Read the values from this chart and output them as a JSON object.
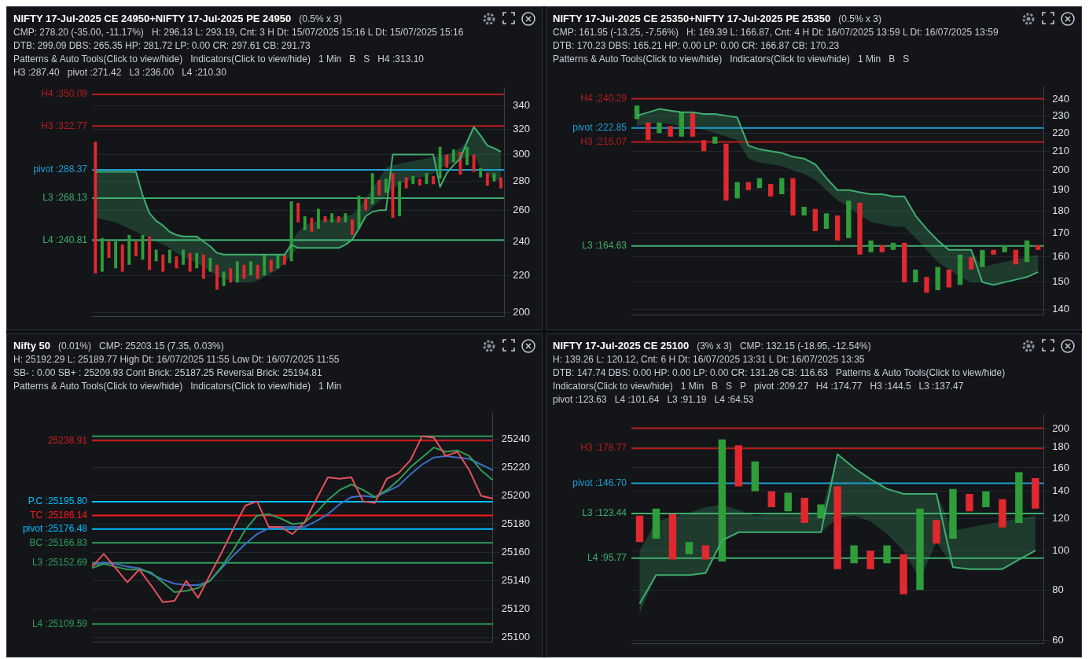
{
  "chart_data": [
    {
      "type": "bar",
      "title": "NIFTY 17-Jul-2025 CE 24950+NIFTY 17-Jul-2025 PE 24950",
      "annotations": [
        "(0.5% x 3)",
        "CMP: 278.20 (-35.00, -11.17%)",
        "H: 296.13 L: 293.19, Cnt: 3 H Dt: 15/07/2025 15:16 L Dt: 15/07/2025 15:16",
        "DTB: 299.09 DBS: 265.35 HP: 281.72 LP: 0.00 CR: 297.61 CB: 291.73",
        "Patterns & Auto Tools(Click to view/hide)",
        "Indicators(Click to view/hide)",
        "1 Min",
        "B",
        "S",
        "H4 :313.10",
        "H3 :287.40",
        "pivot :271.42",
        "L3 :236.00",
        "L4 :210.30"
      ],
      "categories": [
        null,
        null,
        null,
        null,
        null,
        null,
        null,
        null,
        null,
        null,
        null,
        null,
        null,
        null,
        null,
        null,
        null,
        null,
        null,
        null,
        null,
        null,
        null,
        null,
        null,
        null,
        null,
        null,
        null,
        null,
        null,
        null,
        null,
        null,
        null,
        null,
        null,
        null,
        null,
        null,
        null,
        null,
        null,
        null,
        null,
        null,
        null,
        null,
        null,
        null,
        null,
        null,
        null,
        null,
        null,
        null,
        null,
        null,
        null,
        null,
        null
      ],
      "series": [
        {
          "type": "bar",
          "values": [
            89,
            20,
            10,
            16,
            16,
            18,
            9,
            15,
            20,
            7,
            10,
            8,
            7,
            9,
            11,
            9,
            14,
            8,
            14,
            8,
            8,
            12,
            8,
            8,
            8,
            12,
            7,
            8,
            6,
            38,
            13,
            9,
            9,
            13,
            4,
            6,
            4,
            6,
            10,
            22,
            8,
            22,
            11,
            10,
            31,
            24,
            8,
            6,
            5,
            8,
            6,
            24,
            10,
            10,
            17,
            14,
            13,
            7,
            9,
            6,
            8
          ],
          "base": [
            221,
            222,
            230,
            224,
            222,
            226,
            231,
            229,
            223,
            228,
            222,
            227,
            224,
            226,
            222,
            224,
            218,
            222,
            212,
            214,
            216,
            216,
            218,
            220,
            218,
            220,
            222,
            224,
            226,
            228,
            252,
            247,
            246,
            248,
            252,
            252,
            252,
            252,
            244,
            248,
            260,
            264,
            270,
            272,
            255,
            256,
            275,
            278,
            277,
            278,
            278,
            282,
            290,
            294,
            285,
            292,
            287,
            283,
            277,
            280,
            275
          ],
          "colors": [
            "#e0282e",
            "#2e9d3a",
            "#e0282e",
            "#2e9d3a",
            "#e0282e",
            "#2e9d3a",
            "#e0282e",
            "#2e9d3a",
            "#e0282e",
            "#2e9d3a",
            "#e0282e",
            "#2e9d3a",
            "#e0282e",
            "#2e9d3a",
            "#e0282e",
            "#2e9d3a",
            "#e0282e",
            "#2e9d3a",
            "#e0282e",
            "#2e9d3a",
            "#e0282e",
            "#2e9d3a",
            "#e0282e",
            "#2e9d3a",
            "#e0282e",
            "#2e9d3a",
            "#e0282e",
            "#2e9d3a",
            "#e0282e",
            "#2e9d3a",
            "#e0282e",
            "#2e9d3a",
            "#e0282e",
            "#2e9d3a",
            "#e0282e",
            "#2e9d3a",
            "#e0282e",
            "#2e9d3a",
            "#e0282e",
            "#2e9d3a",
            "#e0282e",
            "#2e9d3a",
            "#e0282e",
            "#2e9d3a",
            "#e0282e",
            "#2e9d3a",
            "#e0282e",
            "#2e9d3a",
            "#e0282e",
            "#2e9d3a",
            "#e0282e",
            "#2e9d3a",
            "#e0282e",
            "#2e9d3a",
            "#e0282e",
            "#2e9d3a",
            "#e0282e",
            "#2e9d3a",
            "#e0282e",
            "#2e9d3a",
            "#e0282e"
          ]
        },
        {
          "type": "line",
          "color": "#3fae6e",
          "values": [
            287,
            287,
            287,
            287,
            287,
            287,
            287,
            270,
            258,
            253,
            250,
            246,
            244,
            243,
            243,
            243,
            240,
            237,
            233,
            232,
            232,
            232,
            232,
            232,
            232,
            232,
            232,
            232,
            232,
            238,
            236,
            236,
            236,
            236,
            236,
            236,
            236,
            238,
            241,
            248,
            256,
            259,
            260,
            260,
            300,
            300,
            300,
            300,
            300,
            300,
            300,
            276,
            286,
            292,
            297,
            310,
            322,
            315,
            307,
            305,
            302
          ],
          "lower": [
            255,
            254,
            253,
            252,
            250,
            248,
            246,
            244,
            242,
            240,
            238,
            236,
            233,
            231,
            229,
            227,
            225,
            222,
            220,
            218,
            217,
            216,
            216,
            216,
            217,
            219,
            221,
            223,
            227,
            232,
            236,
            236,
            236,
            236,
            236,
            236,
            236,
            238,
            241,
            248,
            256,
            262,
            266,
            270,
            275,
            278,
            280,
            282,
            283,
            284,
            286,
            290,
            292,
            294,
            296,
            298,
            300,
            290,
            285,
            282,
            280
          ],
          "upper": [
            287,
            287,
            287,
            287,
            287,
            287,
            287,
            270,
            258,
            253,
            250,
            246,
            244,
            243,
            243,
            243,
            240,
            237,
            233,
            232,
            232,
            232,
            232,
            232,
            232,
            232,
            232,
            232,
            232,
            240,
            246,
            250,
            252,
            253,
            254,
            254,
            255,
            256,
            257,
            262,
            268,
            275,
            282,
            290,
            292,
            293,
            294,
            295,
            296,
            297,
            298,
            299,
            300,
            302,
            305,
            310,
            322,
            315,
            307,
            305,
            302
          ]
        }
      ],
      "ylim": [
        198,
        356
      ],
      "yticks": [
        200,
        220,
        240,
        260,
        280,
        300,
        320,
        340
      ],
      "log": "y",
      "grid": "y",
      "tick_labels": "y",
      "ref_lines": [
        {
          "axis": "y",
          "value": 350.09,
          "label": "H4 :350.09",
          "color": "#b71c1c"
        },
        {
          "axis": "y",
          "value": 322.77,
          "label": "H3 :322.77",
          "color": "#b71c1c"
        },
        {
          "axis": "y",
          "value": 288.37,
          "label": "pivot :288.37",
          "color": "#1e9fd0"
        },
        {
          "axis": "y",
          "value": 268.13,
          "label": "L3 :268.13",
          "color": "#3fae6e"
        },
        {
          "axis": "y",
          "value": 240.81,
          "label": "L4 :240.81",
          "color": "#3fae6e"
        }
      ]
    },
    {
      "type": "bar",
      "title": "NIFTY 17-Jul-2025 CE 25350+NIFTY 17-Jul-2025 PE 25350",
      "annotations": [
        "(0.5% x 3)",
        "CMP: 161.95 (-13.25, -7.56%)",
        "H: 169.39 L: 166.87, Cnt: 4 H Dt: 16/07/2025 13:59 L Dt: 16/07/2025 13:59",
        "DTB: 170.23 DBS: 165.21 HP: 0.00 LP: 0.00 CR: 166.87 CB: 170.23",
        "Patterns & Auto Tools(Click to view/hide)",
        "Indicators(Click to view/hide)",
        "1 Min",
        "B",
        "S"
      ],
      "categories": [
        null,
        null,
        null,
        null,
        null,
        null,
        null,
        null,
        null,
        null,
        null,
        null,
        null,
        null,
        null,
        null,
        null,
        null,
        null,
        null,
        null,
        null,
        null,
        null,
        null,
        null,
        null,
        null,
        null,
        null,
        null,
        null,
        null,
        null,
        null,
        null,
        null
      ],
      "series": [
        {
          "type": "bar",
          "values": [
            8,
            10,
            6,
            6,
            14,
            14,
            6,
            4,
            29,
            8,
            4,
            5,
            6,
            8,
            18,
            4,
            10,
            7,
            11,
            17,
            23,
            5,
            3,
            3,
            16,
            5,
            6,
            9,
            7,
            12,
            5,
            7,
            2,
            3,
            6,
            9,
            2
          ],
          "base": [
            228,
            216,
            220,
            218,
            218,
            218,
            210,
            214,
            185,
            186,
            190,
            191,
            187,
            188,
            178,
            178,
            171,
            172,
            167,
            168,
            161,
            162,
            162,
            163,
            150,
            150,
            146,
            147,
            148,
            149,
            155,
            156,
            161,
            162,
            157,
            158,
            163
          ],
          "colors": [
            "#2e9d3a",
            "#e0282e",
            "#2e9d3a",
            "#e0282e",
            "#2e9d3a",
            "#e0282e",
            "#e0282e",
            "#2e9d3a",
            "#e0282e",
            "#2e9d3a",
            "#e0282e",
            "#2e9d3a",
            "#e0282e",
            "#2e9d3a",
            "#e0282e",
            "#2e9d3a",
            "#e0282e",
            "#2e9d3a",
            "#e0282e",
            "#2e9d3a",
            "#e0282e",
            "#2e9d3a",
            "#e0282e",
            "#2e9d3a",
            "#e0282e",
            "#2e9d3a",
            "#e0282e",
            "#2e9d3a",
            "#e0282e",
            "#2e9d3a",
            "#e0282e",
            "#2e9d3a",
            "#e0282e",
            "#2e9d3a",
            "#e0282e",
            "#2e9d3a",
            "#e0282e"
          ]
        },
        {
          "type": "line",
          "color": "#3fae6e",
          "values": [
            230,
            232,
            234,
            233,
            232,
            232,
            231,
            231,
            230,
            229,
            213,
            211,
            210,
            209,
            207,
            206,
            203,
            196,
            190,
            190,
            189,
            188,
            188,
            187,
            187,
            178,
            172,
            167,
            163,
            163,
            163,
            150,
            149,
            150,
            151,
            152,
            154
          ],
          "lower": [
            224,
            225,
            226,
            225,
            224,
            223,
            222,
            220,
            218,
            216,
            206,
            204,
            203,
            202,
            200,
            198,
            195,
            190,
            185,
            182,
            178,
            175,
            174,
            173,
            173,
            168,
            163,
            158,
            155,
            152,
            150,
            150,
            149,
            150,
            151,
            152,
            154
          ],
          "upper": [
            230,
            232,
            234,
            233,
            232,
            232,
            231,
            231,
            230,
            229,
            213,
            211,
            210,
            209,
            207,
            206,
            203,
            196,
            190,
            190,
            189,
            188,
            188,
            187,
            187,
            178,
            172,
            167,
            163,
            163,
            163,
            156,
            157,
            158,
            159,
            160,
            161
          ]
        }
      ],
      "ylim": [
        138,
        248
      ],
      "yticks": [
        140,
        150,
        160,
        170,
        180,
        190,
        200,
        210,
        220,
        230,
        240
      ],
      "log": "y",
      "grid": "y",
      "tick_labels": "y",
      "ref_lines": [
        {
          "axis": "y",
          "value": 240.29,
          "label": "H4 :240.29",
          "color": "#b71c1c"
        },
        {
          "axis": "y",
          "value": 222.85,
          "label": "pivot :222.85",
          "color": "#1e9fd0"
        },
        {
          "axis": "y",
          "value": 215.07,
          "label": "H3 :215.07",
          "color": "#b71c1c"
        },
        {
          "axis": "y",
          "value": 164.63,
          "label": "L3 :164.63",
          "color": "#3fae6e"
        }
      ]
    },
    {
      "type": "line",
      "title": "Nifty 50",
      "annotations": [
        "(0.01%)",
        "CMP: 25203.15 (7.35, 0.03%)",
        "H: 25192.29 L: 25189.77 High Dt: 16/07/2025 11:55 Low Dt: 16/07/2025 11:55",
        "SB- : 0.00 SB+ : 25209.93 Cont Brick: 25187.25 Reversal Brick: 25194.81",
        "Patterns & Auto Tools(Click to view/hide)",
        "Indicators(Click to view/hide)",
        "1 Min"
      ],
      "categories": [
        null,
        null,
        null,
        null,
        null,
        null,
        null,
        null,
        null,
        null,
        null,
        null,
        null,
        null,
        null,
        null,
        null,
        null,
        null,
        null,
        null,
        null,
        null,
        null,
        null,
        null,
        null,
        null,
        null,
        null,
        null,
        null,
        null,
        null,
        null
      ],
      "series": [
        {
          "type": "line",
          "color": "#e8505b",
          "values": [
            25150,
            25159,
            25149,
            25139,
            25148,
            25137,
            25125,
            25126,
            25140,
            25128,
            25144,
            25160,
            25177,
            25193,
            25196,
            25178,
            25178,
            25173,
            25181,
            25197,
            25213,
            25212,
            25213,
            25196,
            25195,
            25212,
            25216,
            25225,
            25242,
            25241,
            25228,
            25231,
            25218,
            25200,
            25198
          ]
        },
        {
          "type": "line",
          "color": "#2e9d5a",
          "values": [
            25149,
            25152,
            25150,
            25148,
            25148,
            25146,
            25139,
            25132,
            25133,
            25135,
            25140,
            25150,
            25162,
            25176,
            25186,
            25187,
            25184,
            25180,
            25181,
            25188,
            25197,
            25204,
            25208,
            25204,
            25199,
            25204,
            25211,
            25220,
            25227,
            25234,
            25231,
            25232,
            25228,
            25218,
            25211
          ]
        },
        {
          "type": "line",
          "color": "#3d6fc4",
          "values": [
            25151,
            25153,
            25152,
            25150,
            25149,
            25145,
            25141,
            25138,
            25137,
            25137,
            25140,
            25149,
            25158,
            25166,
            25173,
            25177,
            25178,
            25178,
            25178,
            25182,
            25187,
            25194,
            25199,
            25200,
            25199,
            25203,
            25207,
            25215,
            25222,
            25227,
            25228,
            25227,
            25226,
            25222,
            25218
          ]
        }
      ],
      "ylim": [
        25097,
        25258
      ],
      "yticks": [
        25100,
        25120,
        25140,
        25160,
        25180,
        25200,
        25220,
        25240
      ],
      "grid": "y",
      "tick_labels": "y",
      "ref_lines": [
        {
          "axis": "y",
          "value": 25242,
          "color": "#2e9d5a"
        },
        {
          "axis": "y",
          "value": 25238.91,
          "label": "25238.91",
          "color": "#d01c1c"
        },
        {
          "axis": "y",
          "value": 25195.8,
          "label": "P.C :25195.80",
          "color": "#00bfff"
        },
        {
          "axis": "y",
          "value": 25186.14,
          "label": "TC :25186.14",
          "color": "#ff1a1a"
        },
        {
          "axis": "y",
          "value": 25176.48,
          "label": "pivot :25176.48",
          "color": "#00bfff"
        },
        {
          "axis": "y",
          "value": 25166.83,
          "label": "BC :25166.83",
          "color": "#2e9d5a"
        },
        {
          "axis": "y",
          "value": 25152.69,
          "label": "L3 :25152.69",
          "color": "#2e9d5a"
        },
        {
          "axis": "y",
          "value": 25109.59,
          "label": "L4 :25109.59",
          "color": "#2e9d5a"
        }
      ]
    },
    {
      "type": "bar",
      "title": "NIFTY 17-Jul-2025 CE 25100",
      "annotations": [
        "(3% x 3)",
        "CMP: 132.15 (-18.95, -12.54%)",
        "H: 139.26 L: 120.12, Cnt: 6 H Dt: 16/07/2025 13:31 L Dt: 16/07/2025 13:35",
        "DTB: 147.74 DBS: 0.00 HP: 0.00 LP: 0.00 CR: 131.26 CB: 116.63",
        "Patterns & Auto Tools(Click to view/hide)",
        "Indicators(Click to view/hide)",
        "1 Min",
        "B",
        "S",
        "P",
        "pivot :209.27",
        "H4 :174.77",
        "H3 :144.5",
        "L3 :137.47",
        "pivot :123.63",
        "L4 :101.64",
        "L3 :91.19",
        "L4 :64.53"
      ],
      "categories": [
        null,
        null,
        null,
        null,
        null,
        null,
        null,
        null,
        null,
        null,
        null,
        null,
        null,
        null,
        null,
        null,
        null,
        null,
        null,
        null,
        null,
        null,
        null,
        null,
        null
      ],
      "series": [
        {
          "type": "bar",
          "values": [
            17,
            20,
            28,
            7,
            8,
            94,
            38,
            26,
            12,
            14,
            18,
            10,
            54,
            10,
            10,
            10,
            20,
            47,
            15,
            35,
            13,
            12,
            20,
            39,
            24
          ],
          "base": [
            105,
            107,
            95,
            98,
            95,
            94,
            144,
            140,
            128,
            125,
            117,
            120,
            90,
            93,
            90,
            93,
            78,
            80,
            104,
            107,
            125,
            128,
            114,
            117,
            127
          ],
          "colors": [
            "#e0282e",
            "#2e9d3a",
            "#e0282e",
            "#2e9d3a",
            "#e0282e",
            "#2e9d3a",
            "#e0282e",
            "#2e9d3a",
            "#e0282e",
            "#2e9d3a",
            "#e0282e",
            "#2e9d3a",
            "#e0282e",
            "#2e9d3a",
            "#e0282e",
            "#2e9d3a",
            "#e0282e",
            "#2e9d3a",
            "#e0282e",
            "#2e9d3a",
            "#e0282e",
            "#2e9d3a",
            "#e0282e",
            "#2e9d3a",
            "#e0282e"
          ]
        },
        {
          "type": "line",
          "color": "#3fae6e",
          "values": [
            74,
            87,
            87,
            87,
            88,
            106,
            111,
            111,
            111,
            111,
            111,
            111,
            173,
            160,
            150,
            142,
            138,
            138,
            138,
            91,
            90,
            90,
            90,
            95,
            100
          ],
          "lower": [
            70,
            87,
            87,
            87,
            88,
            106,
            111,
            111,
            111,
            111,
            111,
            111,
            120,
            122,
            118,
            110,
            100,
            85,
            105,
            91,
            90,
            90,
            90,
            95,
            100
          ],
          "upper": [
            100,
            118,
            121,
            124,
            128,
            130,
            126,
            122,
            123,
            124,
            124,
            124,
            173,
            160,
            150,
            142,
            138,
            138,
            138,
            112,
            114,
            116,
            118,
            120,
            122
          ]
        }
      ],
      "ylim": [
        59,
        216
      ],
      "yticks": [
        60,
        80,
        100,
        120,
        140,
        160,
        180,
        200
      ],
      "log": "y",
      "grid": "y",
      "tick_labels": "y",
      "ref_lines": [
        {
          "axis": "y",
          "value": 200.5,
          "color": "#b71c1c"
        },
        {
          "axis": "y",
          "value": 178.77,
          "label": "H3 :178.77",
          "color": "#b71c1c"
        },
        {
          "axis": "y",
          "value": 146.7,
          "label": "pivot :146.70",
          "color": "#1e9fd0"
        },
        {
          "axis": "y",
          "value": 123.44,
          "label": "L3 :123.44",
          "color": "#3fae6e"
        },
        {
          "axis": "y",
          "value": 95.77,
          "label": "L4 :95.77",
          "color": "#3fae6e"
        }
      ]
    }
  ]
}
